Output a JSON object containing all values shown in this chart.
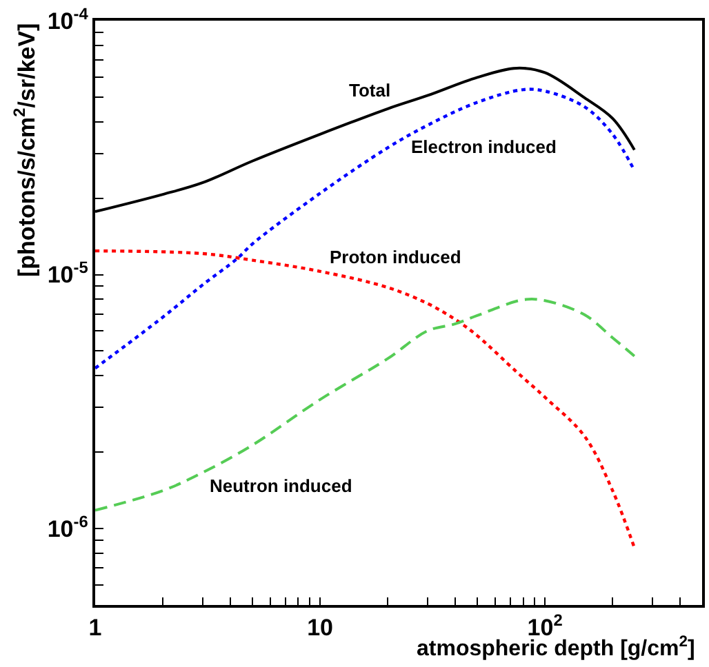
{
  "chart_data": {
    "type": "line",
    "xlabel": "atmospheric depth [g/cm$^{2}$]",
    "ylabel": "[photons/s/cm$^{2}$/sr/keV]",
    "log": "xy",
    "xlim": [
      1,
      500
    ],
    "ylim": [
      5e-07,
      0.0001
    ],
    "xticks": [
      1,
      {
        "value": 2,
        "label": null
      },
      {
        "value": 3,
        "label": null
      },
      {
        "value": 4,
        "label": null
      },
      {
        "value": 5,
        "label": null
      },
      {
        "value": 6,
        "label": null
      },
      {
        "value": 7,
        "label": null
      },
      {
        "value": 8,
        "label": null
      },
      {
        "value": 9,
        "label": null
      },
      10,
      {
        "value": 20,
        "label": null
      },
      {
        "value": 30,
        "label": null
      },
      {
        "value": 40,
        "label": null
      },
      {
        "value": 50,
        "label": null
      },
      {
        "value": 60,
        "label": null
      },
      {
        "value": 70,
        "label": null
      },
      {
        "value": 80,
        "label": null
      },
      {
        "value": 90,
        "label": null
      },
      {
        "value": 100,
        "label": "10$^{2}$"
      },
      {
        "value": 200,
        "label": null
      },
      {
        "value": 300,
        "label": null
      },
      {
        "value": 400,
        "label": null
      },
      {
        "value": 500,
        "label": null
      }
    ],
    "yticks": [
      {
        "value": 6e-07,
        "label": null
      },
      {
        "value": 7e-07,
        "label": null
      },
      {
        "value": 8e-07,
        "label": null
      },
      {
        "value": 9e-07,
        "label": null
      },
      {
        "value": 1e-06,
        "label": "10$^{-6}$"
      },
      {
        "value": 2e-06,
        "label": null
      },
      {
        "value": 3e-06,
        "label": null
      },
      {
        "value": 4e-06,
        "label": null
      },
      {
        "value": 5e-06,
        "label": null
      },
      {
        "value": 6e-06,
        "label": null
      },
      {
        "value": 7e-06,
        "label": null
      },
      {
        "value": 8e-06,
        "label": null
      },
      {
        "value": 9e-06,
        "label": null
      },
      {
        "value": 1e-05,
        "label": "10$^{-5}$"
      },
      {
        "value": 2e-05,
        "label": null
      },
      {
        "value": 3e-05,
        "label": null
      },
      {
        "value": 4e-05,
        "label": null
      },
      {
        "value": 5e-05,
        "label": null
      },
      {
        "value": 6e-05,
        "label": null
      },
      {
        "value": 7e-05,
        "label": null
      },
      {
        "value": 8e-05,
        "label": null
      },
      {
        "value": 9e-05,
        "label": null
      },
      {
        "value": 0.0001,
        "label": "10$^{-4}$"
      }
    ],
    "series": [
      {
        "color": "#000000",
        "line_style": "solid",
        "x": [
          1,
          2,
          3,
          5,
          10,
          20,
          30,
          50,
          75,
          100,
          150,
          200,
          250
        ],
        "values": [
          1.77e-05,
          2.07e-05,
          2.3e-05,
          2.8e-05,
          3.57e-05,
          4.5e-05,
          5.07e-05,
          5.98e-05,
          6.5e-05,
          6.24e-05,
          4.97e-05,
          4.12e-05,
          3.1e-05
        ]
      },
      {
        "color": "#0000ff",
        "line_style": "dotted",
        "x": [
          1,
          2,
          3,
          4.3,
          5,
          10,
          20,
          30,
          50,
          80,
          100,
          150,
          200,
          250
        ],
        "values": [
          4.28e-06,
          6.8e-06,
          9.1e-06,
          1.16e-05,
          1.32e-05,
          2.09e-05,
          3.16e-05,
          3.87e-05,
          4.77e-05,
          5.35e-05,
          5.28e-05,
          4.58e-05,
          3.57e-05,
          2.57e-05
        ]
      },
      {
        "color": "#ff0000",
        "line_style": "dotted",
        "x": [
          1,
          3,
          5,
          10,
          20,
          30,
          40,
          50,
          75,
          100,
          150,
          200,
          250
        ],
        "values": [
          1.24e-05,
          1.21e-05,
          1.14e-05,
          1.03e-05,
          8.9e-06,
          7.7e-06,
          6.65e-06,
          5.75e-06,
          4.13e-06,
          3.29e-06,
          2.31e-06,
          1.41e-06,
          8.4e-07
        ]
      },
      {
        "color": "#55cc55",
        "line_style": "dashed",
        "x": [
          1,
          2,
          3,
          5,
          10,
          20,
          30,
          40,
          50,
          80,
          100,
          150,
          200,
          250
        ],
        "values": [
          1.18e-06,
          1.41e-06,
          1.66e-06,
          2.13e-06,
          3.22e-06,
          4.67e-06,
          6e-06,
          6.4e-06,
          6.9e-06,
          7.96e-06,
          7.9e-06,
          6.95e-06,
          5.64e-06,
          4.78e-06
        ]
      }
    ],
    "annotations": [
      "Total",
      "Electron induced",
      "Proton induced",
      "Neutron induced"
    ]
  }
}
